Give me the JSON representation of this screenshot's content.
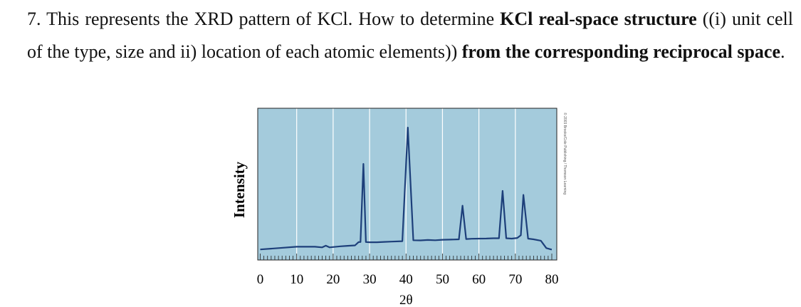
{
  "question": {
    "number": "7.",
    "t1": " This represents the XRD pattern of KCl. How to determine ",
    "b1": "KCl real-space structure",
    "t2": " ((i) unit cell of the type, size and ii) location of each atomic elements)) ",
    "b2": "from the corresponding reciprocal space",
    "t3": "."
  },
  "chart_data": {
    "type": "line",
    "xlabel": "2θ",
    "ylabel": "Intensity",
    "xlim": [
      0,
      80
    ],
    "ylim": [
      0,
      100
    ],
    "xticks": [
      0,
      10,
      20,
      30,
      40,
      50,
      60,
      70,
      80
    ],
    "tick_labels": [
      "0",
      "10",
      "20",
      "30",
      "40",
      "50",
      "60",
      "70",
      "80"
    ],
    "grid": "vertical",
    "background_color": "#a4cbdc",
    "line_color": "#1d3f7a",
    "credit": "© 2003 Brooks/Cole Publishing / Thomson Learning",
    "series": [
      {
        "x": [
          0,
          5,
          10,
          15,
          17,
          18,
          19,
          20,
          22,
          24,
          26,
          27,
          27.5,
          28.3,
          29,
          30,
          32,
          34,
          36,
          39,
          40.5,
          42,
          44,
          46,
          48,
          50,
          52,
          54.5,
          55.5,
          56.5,
          58,
          60,
          62,
          64,
          65.5,
          66.5,
          67.5,
          69,
          70.5,
          71.5,
          72.2,
          73.5,
          75,
          77,
          78.5,
          79.8,
          80
        ],
        "y": [
          1.5,
          2.5,
          3.5,
          3.5,
          3.0,
          4.3,
          3.0,
          3.3,
          3.8,
          4.2,
          4.5,
          7,
          7,
          65,
          7,
          6.8,
          6.8,
          7.1,
          7.3,
          7.6,
          92,
          8.3,
          8.2,
          8.5,
          8.3,
          8.7,
          8.8,
          9.0,
          34,
          9.2,
          9.4,
          9.5,
          9.6,
          9.8,
          9.8,
          45,
          9.8,
          9.5,
          10,
          12,
          42,
          9.5,
          9,
          8,
          2.5,
          1.5,
          1.5
        ]
      }
    ]
  }
}
